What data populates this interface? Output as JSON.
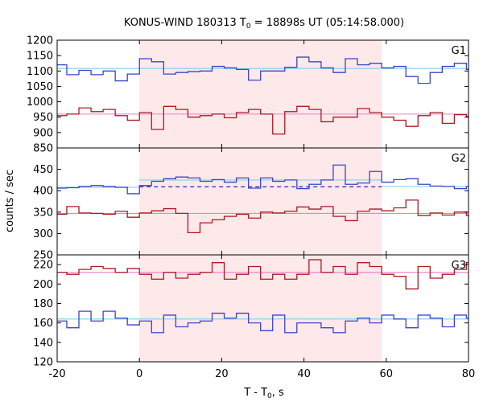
{
  "chart_data": {
    "type": "line",
    "title": "KONUS-WIND 180313 T",
    "title_sub": "0",
    "title_rest": " = 18898s UT (05:14:58.000)",
    "xlabel": "T - T",
    "xlabel_sub": "0",
    "xlabel_rest": ", s",
    "ylabel": "counts / sec",
    "xlim": [
      -20,
      80
    ],
    "x_ticks": [
      -20,
      0,
      20,
      40,
      60,
      80
    ],
    "x_tick_labels": [
      "-20",
      "0",
      "20",
      "40",
      "60",
      "80"
    ],
    "shaded_interval": [
      0,
      58.9
    ],
    "bin_width": 2.944,
    "bin_start": -20.6,
    "colors": {
      "shade": "#fde8ea",
      "blue": "#3a45c8",
      "red": "#a81c24",
      "cyan": "#7ed0ea",
      "pink": "#ee7fc4",
      "dash": "#2c2aa8"
    },
    "panels": [
      {
        "label": "G1",
        "ylim": [
          850,
          1200
        ],
        "y_ticks": [
          850,
          900,
          950,
          1000,
          1050,
          1100,
          1150,
          1200
        ],
        "y_tick_labels": [
          "850",
          "900",
          "950",
          "1000",
          "1050",
          "1100",
          "1150",
          "1200"
        ],
        "series": [
          {
            "color": "blue",
            "values": [
              1120,
              1088,
              1102,
              1088,
              1100,
              1068,
              1090,
              1140,
              1130,
              1090,
              1095,
              1098,
              1100,
              1115,
              1110,
              1105,
              1070,
              1100,
              1100,
              1112,
              1145,
              1130,
              1110,
              1095,
              1140,
              1120,
              1125,
              1110,
              1115,
              1082,
              1060,
              1095,
              1115,
              1125,
              1105,
              1130,
              1125
            ]
          },
          {
            "color": "red",
            "values": [
              955,
              960,
              980,
              968,
              975,
              955,
              940,
              965,
              910,
              985,
              975,
              950,
              955,
              960,
              948,
              965,
              975,
              960,
              895,
              968,
              985,
              975,
              935,
              950,
              950,
              978,
              965,
              950,
              940,
              920,
              955,
              965,
              930,
              958,
              952,
              960,
              958
            ]
          }
        ],
        "fits": [
          {
            "color": "cyan",
            "value": 1108,
            "dashed": false,
            "from": -20,
            "to": 80
          },
          {
            "color": "pink",
            "value": 960,
            "dashed": false,
            "from": -20,
            "to": 80
          }
        ]
      },
      {
        "label": "G2",
        "ylim": [
          250,
          500
        ],
        "y_ticks": [
          250,
          300,
          350,
          400,
          450
        ],
        "y_tick_labels": [
          "250",
          "300",
          "350",
          "400",
          "450"
        ],
        "series": [
          {
            "color": "blue",
            "values": [
              406,
              407,
              410,
              412,
              410,
              408,
              393,
              412,
              422,
              428,
              432,
              430,
              422,
              426,
              420,
              430,
              406,
              430,
              422,
              425,
              405,
              415,
              425,
              460,
              415,
              418,
              445,
              420,
              426,
              428,
              415,
              411,
              410,
              405,
              410,
              415,
              418
            ]
          },
          {
            "color": "red",
            "values": [
              345,
              363,
              348,
              347,
              345,
              352,
              338,
              348,
              353,
              358,
              347,
              302,
              325,
              332,
              340,
              345,
              336,
              350,
              348,
              352,
              362,
              357,
              363,
              340,
              330,
              352,
              357,
              353,
              360,
              378,
              342,
              348,
              343,
              350,
              342,
              348,
              355
            ]
          }
        ],
        "fits": [
          {
            "color": "cyan",
            "value": 408,
            "dashed": false,
            "from": -20,
            "to": 0
          },
          {
            "color": "cyan",
            "value": 425,
            "dashed": false,
            "from": 0,
            "to": 58.9
          },
          {
            "color": "cyan",
            "value": 410,
            "dashed": false,
            "from": 58.9,
            "to": 80
          },
          {
            "color": "dash",
            "value": 409,
            "dashed": true,
            "from": 0,
            "to": 58.9
          },
          {
            "color": "pink",
            "value": 347,
            "dashed": false,
            "from": -20,
            "to": 80
          }
        ]
      },
      {
        "label": "G3",
        "ylim": [
          120,
          230
        ],
        "y_ticks": [
          120,
          140,
          160,
          180,
          200,
          220
        ],
        "y_tick_labels": [
          "120",
          "140",
          "160",
          "180",
          "200",
          "220"
        ],
        "series": [
          {
            "color": "red",
            "values": [
              212,
              210,
              215,
              218,
              216,
              212,
              216,
              210,
              205,
              212,
              206,
              210,
              212,
              222,
              205,
              210,
              218,
              205,
              210,
              205,
              210,
              225,
              212,
              218,
              210,
              222,
              218,
              210,
              208,
              195,
              218,
              206,
              210,
              215,
              222,
              218,
              222
            ]
          },
          {
            "color": "blue",
            "values": [
              162,
              155,
              172,
              162,
              172,
              165,
              158,
              162,
              150,
              168,
              156,
              160,
              162,
              170,
              165,
              170,
              160,
              152,
              168,
              150,
              160,
              160,
              155,
              150,
              162,
              165,
              160,
              168,
              164,
              155,
              168,
              165,
              156,
              168,
              165,
              170,
              175
            ]
          }
        ],
        "fits": [
          {
            "color": "pink",
            "value": 212,
            "dashed": false,
            "from": -20,
            "to": 80
          },
          {
            "color": "cyan",
            "value": 164,
            "dashed": false,
            "from": -20,
            "to": 80
          }
        ]
      }
    ]
  }
}
